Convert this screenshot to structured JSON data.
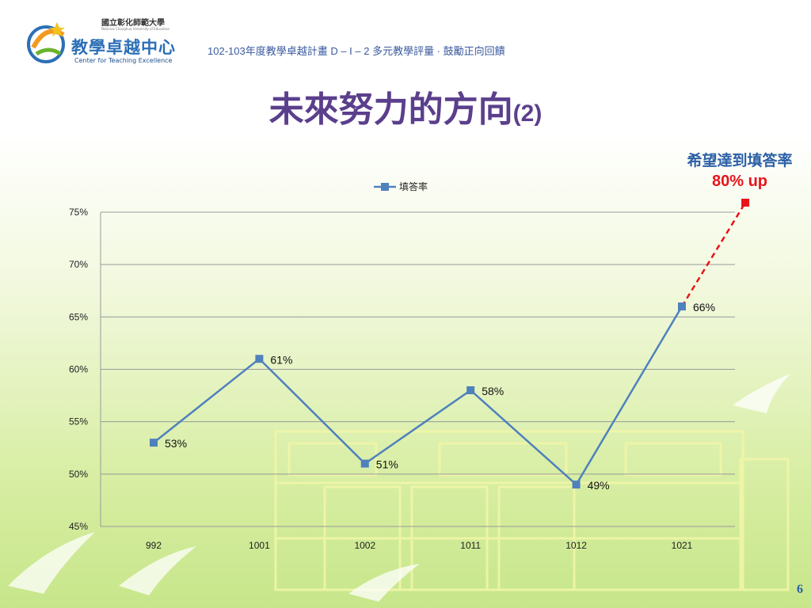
{
  "header": {
    "university_cn": "國立彰化師範大學",
    "university_en": "National Changhua University of Education",
    "center_cn": "教學卓越中心",
    "center_en": "Center for Teaching Excellence",
    "project_line": "102-103年度教學卓越計畫  D – I – 2 多元教學評量 · 鼓勵正向回饋"
  },
  "slide": {
    "title_main": "未來努力的方向",
    "title_sub": "(2)",
    "target_line1": "希望達到填答率",
    "target_line2": "80% up",
    "page_number": "6"
  },
  "colors": {
    "title": "#5b3f8c",
    "series": "#4f81bd",
    "target_line": "#e8141b",
    "target_label": "#2b5fa6"
  },
  "chart_data": {
    "type": "line",
    "legend_position": "top",
    "grid": true,
    "categories": [
      "992",
      "1001",
      "1002",
      "1011",
      "1012",
      "1021"
    ],
    "series": [
      {
        "name": "填答率",
        "values": [
          53,
          61,
          51,
          58,
          49,
          66
        ],
        "labels": [
          "53%",
          "61%",
          "51%",
          "58%",
          "49%",
          "66%"
        ]
      }
    ],
    "target": {
      "from_category": "1021",
      "from_value": 66,
      "value": 80
    },
    "ylim": [
      45,
      75
    ],
    "yticks": [
      45,
      50,
      55,
      60,
      65,
      70,
      75
    ],
    "ytick_labels": [
      "45%",
      "50%",
      "55%",
      "60%",
      "65%",
      "70%",
      "75%"
    ]
  }
}
